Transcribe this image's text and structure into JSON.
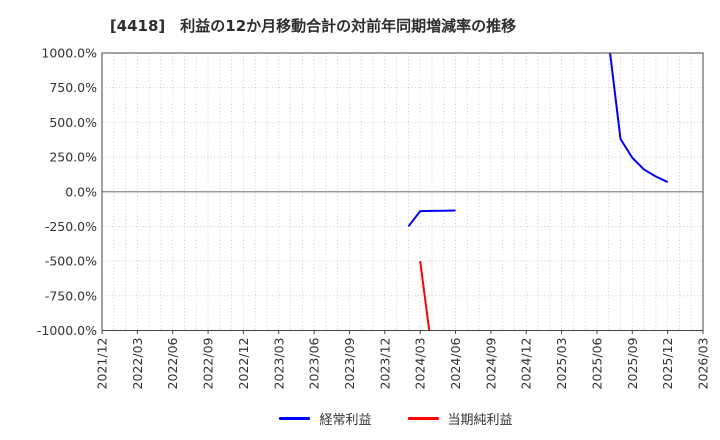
{
  "chart_data": {
    "type": "line",
    "title": "[4418]　利益の12か月移動合計の対前年同期増減率の推移",
    "x_start": "2021/12",
    "x_end": "2026/03",
    "x_tick_labels": [
      "2021/12",
      "2022/03",
      "2022/06",
      "2022/09",
      "2022/12",
      "2023/03",
      "2023/06",
      "2023/09",
      "2023/12",
      "2024/03",
      "2024/06",
      "2024/09",
      "2024/12",
      "2025/03",
      "2025/06",
      "2025/09",
      "2025/12",
      "2026/03"
    ],
    "ylim": [
      -1000,
      1000
    ],
    "y_ticks": [
      1000,
      750,
      500,
      250,
      0,
      -250,
      -500,
      -750,
      -1000
    ],
    "y_tick_labels": [
      "1000.0%",
      "750.0%",
      "500.0%",
      "250.0%",
      "0.0%",
      "-250.0%",
      "-500.0%",
      "-750.0%",
      "-1000.0%"
    ],
    "grid": true,
    "grid_x_interval_months": 1,
    "legend_position": "bottom",
    "note": "Values outside the y-axis range are clipped at the plot border: 経常利益 2025/07 is above +1000%, 当期純利益 2024/04 is below -1000%.",
    "colors": {
      "ordinary_profit": "#0000ff",
      "net_income": "#ff0000",
      "grid": "#c3c3c3",
      "zero_line": "#8a8a8a",
      "border": "#444444",
      "tick_text": "#333333"
    },
    "series": [
      {
        "name": "経常利益",
        "color": "#0000ff",
        "segments": [
          [
            [
              "2024/02",
              -250
            ],
            [
              "2024/03",
              -140
            ],
            [
              "2024/04",
              -138
            ],
            [
              "2024/05",
              -137
            ],
            [
              "2024/06",
              -135
            ]
          ],
          [
            [
              "2025/07",
              1080
            ],
            [
              "2025/08",
              380
            ],
            [
              "2025/09",
              245
            ],
            [
              "2025/10",
              160
            ],
            [
              "2025/11",
              110
            ],
            [
              "2025/12",
              70
            ]
          ]
        ]
      },
      {
        "name": "当期純利益",
        "color": "#ff0000",
        "segments": [
          [
            [
              "2024/03",
              -500
            ],
            [
              "2024/04",
              -1150
            ]
          ]
        ]
      }
    ]
  }
}
